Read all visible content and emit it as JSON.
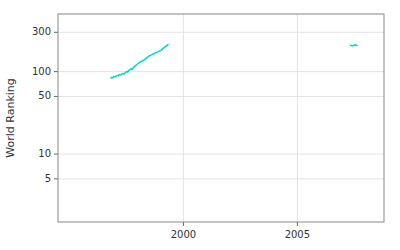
{
  "chart_data": {
    "type": "line",
    "ylabel": "World Ranking",
    "series": [
      {
        "color": "#00d4d4",
        "x": [
          1996.8,
          1996.85,
          1996.9,
          1996.95,
          1997.0,
          1997.05,
          1997.1,
          1997.15,
          1997.2,
          1997.25,
          1997.3,
          1997.35,
          1997.4,
          1997.45,
          1997.5,
          1997.55,
          1997.6,
          1997.65,
          1997.7,
          1997.75,
          1997.8,
          1997.85,
          1997.9,
          1997.95,
          1998.0,
          1998.1,
          1998.2,
          1998.3,
          1998.4,
          1998.5,
          1998.6,
          1998.7,
          1998.8,
          1998.9,
          1999.0,
          1999.1,
          1999.2,
          1999.3,
          1999.35
        ],
        "values": [
          83,
          85,
          84,
          87,
          86,
          88,
          90,
          89,
          92,
          91,
          93,
          95,
          94,
          97,
          100,
          99,
          103,
          105,
          108,
          106,
          112,
          115,
          118,
          120,
          125,
          130,
          135,
          140,
          148,
          155,
          160,
          165,
          170,
          175,
          180,
          190,
          200,
          210,
          215
        ]
      },
      {
        "color": "#00d4d4",
        "x": [
          2007.3,
          2007.35,
          2007.4,
          2007.45,
          2007.5,
          2007.55,
          2007.6,
          2007.65
        ],
        "values": [
          210,
          208,
          205,
          207,
          210,
          212,
          208,
          205
        ]
      }
    ],
    "xlim": [
      1994.5,
      2008.8
    ],
    "xticks": [
      2000,
      2005
    ],
    "ylim": [
      1.5,
      500
    ],
    "yticks": [
      5,
      10,
      50,
      100,
      300
    ],
    "log": "y",
    "grid": true
  }
}
